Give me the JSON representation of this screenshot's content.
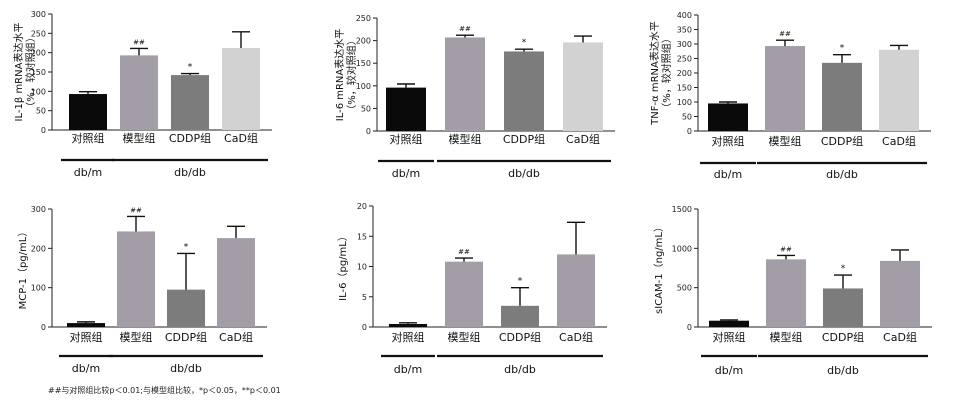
{
  "chart_data": [
    {
      "type": "bar",
      "ylabel": "IL-1β mRNA表达水平（%，较对照组）",
      "ylabel_lines": [
        "IL-1β mRNA表达水平",
        "（%，较对照组）"
      ],
      "ylim": [
        0,
        300
      ],
      "yticks": [
        0,
        50,
        100,
        150,
        200,
        250,
        300
      ],
      "categories": [
        "对照组",
        "模型组",
        "CDDP组",
        "CaD组"
      ],
      "values": [
        93,
        193,
        142,
        212
      ],
      "errors": [
        6,
        18,
        4,
        42
      ],
      "annotations": [
        "",
        "##",
        "*",
        ""
      ],
      "colors": [
        "#0a0a0a",
        "#a39da8",
        "#7c7c7c",
        "#d2d2d2"
      ],
      "groups": [
        {
          "label": "db/m",
          "span": [
            0,
            0
          ]
        },
        {
          "label": "db/db",
          "span": [
            1,
            3
          ]
        }
      ]
    },
    {
      "type": "bar",
      "ylabel": "IL-6 mRNA表达水平（%，较对照组）",
      "ylabel_lines": [
        "IL-6 mRNA表达水平",
        "（%，较对照组）"
      ],
      "ylim": [
        0,
        250
      ],
      "yticks": [
        0,
        50,
        100,
        150,
        200,
        250
      ],
      "categories": [
        "对照组",
        "模型组",
        "CDDP组",
        "CaD组"
      ],
      "values": [
        96,
        207,
        176,
        196
      ],
      "errors": [
        8,
        5,
        5,
        14
      ],
      "annotations": [
        "",
        "##",
        "*",
        ""
      ],
      "colors": [
        "#0a0a0a",
        "#a39da8",
        "#7c7c7c",
        "#d2d2d2"
      ],
      "groups": [
        {
          "label": "db/m",
          "span": [
            0,
            0
          ]
        },
        {
          "label": "db/db",
          "span": [
            1,
            3
          ]
        }
      ]
    },
    {
      "type": "bar",
      "ylabel": "TNF-α mRNA表达水平（%，较对照组）",
      "ylabel_lines": [
        "TNF-α mRNA表达水平",
        "（%，较对照组）"
      ],
      "ylim": [
        0,
        400
      ],
      "yticks": [
        0,
        50,
        100,
        150,
        200,
        250,
        300,
        350,
        400
      ],
      "categories": [
        "对照组",
        "模型组",
        "CDDP组",
        "CaD组"
      ],
      "values": [
        95,
        293,
        235,
        280
      ],
      "errors": [
        5,
        20,
        28,
        15
      ],
      "annotations": [
        "",
        "##",
        "*",
        ""
      ],
      "colors": [
        "#0a0a0a",
        "#a39da8",
        "#7c7c7c",
        "#d2d2d2"
      ],
      "groups": [
        {
          "label": "db/m",
          "span": [
            0,
            0
          ]
        },
        {
          "label": "db/db",
          "span": [
            1,
            3
          ]
        }
      ]
    },
    {
      "type": "bar",
      "ylabel": "MCP-1（pg/mL）",
      "ylabel_lines": [
        "MCP-1（pg/mL）"
      ],
      "ylim": [
        0,
        300
      ],
      "yticks": [
        0,
        100,
        200,
        300
      ],
      "categories": [
        "对照组",
        "模型组",
        "CDDP组",
        "CaD组"
      ],
      "values": [
        10,
        243,
        95,
        226
      ],
      "errors": [
        3,
        38,
        92,
        30
      ],
      "annotations": [
        "",
        "##",
        "*",
        ""
      ],
      "colors": [
        "#0a0a0a",
        "#a39da8",
        "#7c7c7c",
        "#a39da8"
      ],
      "groups": [
        {
          "label": "db/m",
          "span": [
            0,
            0
          ]
        },
        {
          "label": "db/db",
          "span": [
            1,
            3
          ]
        }
      ]
    },
    {
      "type": "bar",
      "ylabel": "IL-6（pg/mL）",
      "ylabel_lines": [
        "IL-6（pg/mL）"
      ],
      "ylim": [
        0,
        20
      ],
      "yticks": [
        0,
        5,
        10,
        15,
        20
      ],
      "categories": [
        "对照组",
        "模型组",
        "CDDP组",
        "CaD组"
      ],
      "values": [
        0.5,
        10.8,
        3.5,
        12.0
      ],
      "errors": [
        0.2,
        0.6,
        3.0,
        5.3
      ],
      "annotations": [
        "",
        "##",
        "*",
        ""
      ],
      "colors": [
        "#0a0a0a",
        "#a39da8",
        "#7c7c7c",
        "#a39da8"
      ],
      "groups": [
        {
          "label": "db/m",
          "span": [
            0,
            0
          ]
        },
        {
          "label": "db/db",
          "span": [
            1,
            3
          ]
        }
      ]
    },
    {
      "type": "bar",
      "ylabel": "sICAM-1（ng/mL）",
      "ylabel_lines": [
        "sICAM-1（ng/mL）"
      ],
      "ylim": [
        0,
        1500
      ],
      "yticks": [
        0,
        500,
        1000,
        1500
      ],
      "categories": [
        "对照组",
        "模型组",
        "CDDP组",
        "CaD组"
      ],
      "values": [
        80,
        860,
        490,
        840
      ],
      "errors": [
        10,
        50,
        170,
        140
      ],
      "annotations": [
        "",
        "##",
        "*",
        ""
      ],
      "colors": [
        "#0a0a0a",
        "#a39da8",
        "#7c7c7c",
        "#a39da8"
      ],
      "groups": [
        {
          "label": "db/m",
          "span": [
            0,
            0
          ]
        },
        {
          "label": "db/db",
          "span": [
            1,
            3
          ]
        }
      ]
    }
  ],
  "footnote": "##与对照组比较p＜0.01;与模型组比较，*p＜0.05，**p＜0.01"
}
